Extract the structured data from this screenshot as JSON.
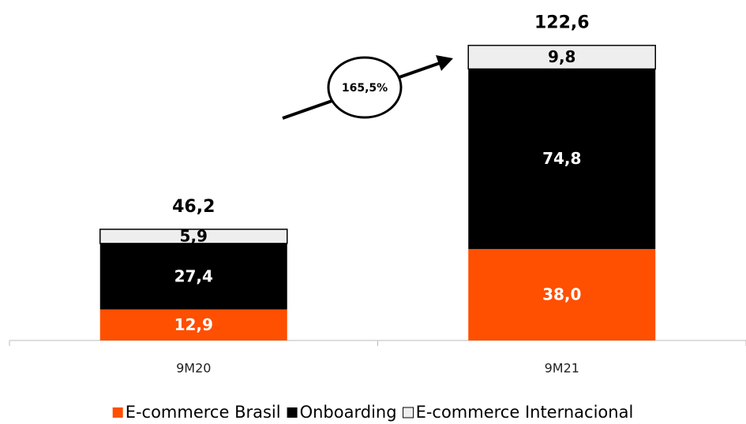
{
  "chart_data": {
    "type": "stacked_bar",
    "categories": [
      "9M20",
      "9M21"
    ],
    "series": [
      {
        "name": "E-commerce Brasil",
        "color": "#ff4f00",
        "values": [
          12.9,
          38.0
        ],
        "value_labels": [
          "12,9",
          "38,0"
        ]
      },
      {
        "name": "Onboarding",
        "color": "#000000",
        "values": [
          27.4,
          74.8
        ],
        "value_labels": [
          "27,4",
          "74,8"
        ]
      },
      {
        "name": "E-commerce Internacional",
        "color": "#eeeeee",
        "values": [
          5.9,
          9.8
        ],
        "value_labels": [
          "5,9",
          "9,8"
        ]
      }
    ],
    "totals": {
      "values": [
        46.2,
        122.6
      ],
      "value_labels": [
        "46,2",
        "122,6"
      ]
    },
    "annotation": "165,5%",
    "ylim": [
      0,
      130
    ]
  }
}
